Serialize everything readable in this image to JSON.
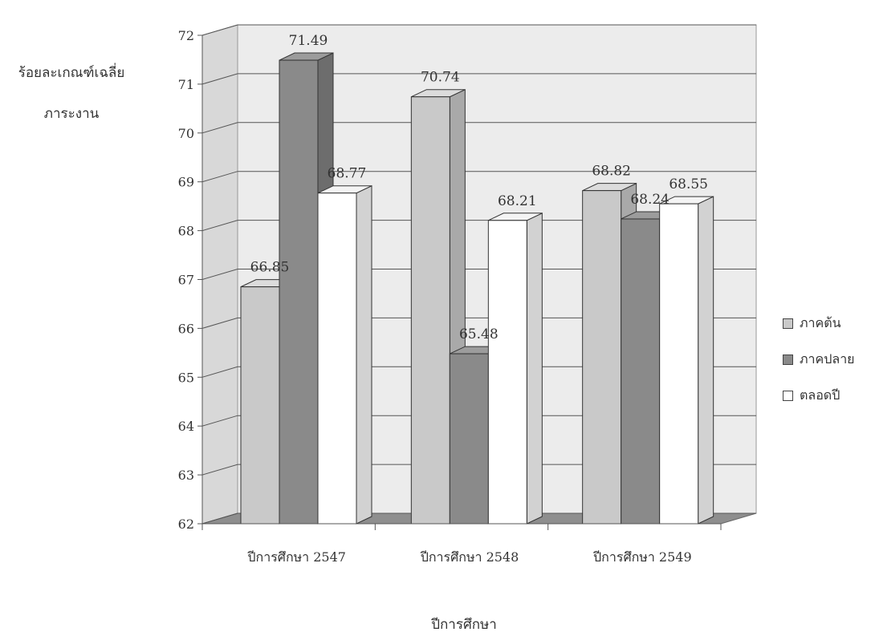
{
  "chart_data": {
    "type": "bar",
    "title": "",
    "xlabel": "ปีการศึกษา",
    "ylabel_lines": [
      "ร้อยละเกณฑ์เฉลี่ย",
      "ภาระงาน"
    ],
    "ylim": [
      62,
      72
    ],
    "yticks": [
      "62",
      "63",
      "64",
      "65",
      "66",
      "67",
      "68",
      "69",
      "70",
      "71",
      "72"
    ],
    "categories": [
      "ปีการศึกษา 2547",
      "ปีการศึกษา 2548",
      "ปีการศึกษา 2549"
    ],
    "series": [
      {
        "name": "ภาคต้น",
        "values": [
          66.85,
          70.74,
          68.82
        ],
        "labels": [
          "66.85",
          "70.74",
          "68.82"
        ],
        "color": "#c9c9c9"
      },
      {
        "name": "ภาคปลาย",
        "values": [
          71.49,
          65.48,
          68.24
        ],
        "labels": [
          "71.49",
          "65.48",
          "68.24"
        ],
        "color": "#8a8a8a"
      },
      {
        "name": "ตลอดปี",
        "values": [
          68.77,
          68.21,
          68.55
        ],
        "labels": [
          "68.77",
          "68.21",
          "68.55"
        ],
        "color": "#ffffff"
      }
    ],
    "legend_position": "right",
    "grid": true,
    "style": "3d"
  }
}
